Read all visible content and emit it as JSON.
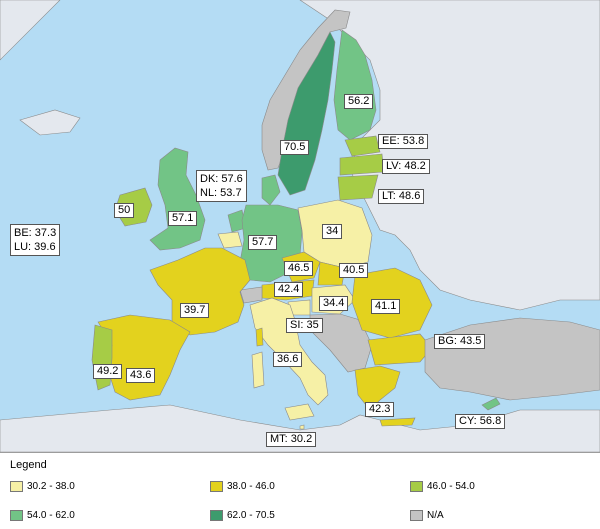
{
  "colors": {
    "sea": "#b4dcf4",
    "nonEU": "#e4e8ee",
    "na": "#c4c4c4",
    "c1": "#f6f0a6",
    "c2": "#e3d21e",
    "c3": "#a6cc46",
    "c4": "#72c486",
    "c5": "#3d9b6d"
  },
  "labels": {
    "fi": "56.2",
    "se": "70.5",
    "ee": "EE: 53.8",
    "lv": "LV: 48.2",
    "lt": "LT: 48.6",
    "dk": "DK: 57.6",
    "nl": "NL: 53.7",
    "ie": "50",
    "uk": "57.1",
    "be": "BE: 37.3",
    "lu": "LU: 39.6",
    "pl": "34",
    "de": "57.7",
    "cz": "46.5",
    "sk": "40.5",
    "at": "42.4",
    "hu": "34.4",
    "fr": "39.7",
    "ro": "41.1",
    "si": "SI: 35",
    "bg": "BG: 43.5",
    "pt": "49.2",
    "es": "43.6",
    "it": "36.6",
    "gr": "42.3",
    "cy": "CY: 56.8",
    "mt": "MT: 30.2"
  },
  "legend": {
    "title": "Legend",
    "items": [
      {
        "label": "30.2 - 38.0",
        "color": "#f6f0a6"
      },
      {
        "label": "38.0 - 46.0",
        "color": "#e3d21e"
      },
      {
        "label": "46.0 - 54.0",
        "color": "#a6cc46"
      },
      {
        "label": "54.0 - 62.0",
        "color": "#72c486"
      },
      {
        "label": "62.0 - 70.5",
        "color": "#3d9b6d"
      },
      {
        "label": "N/A",
        "color": "#c4c4c4"
      }
    ]
  }
}
